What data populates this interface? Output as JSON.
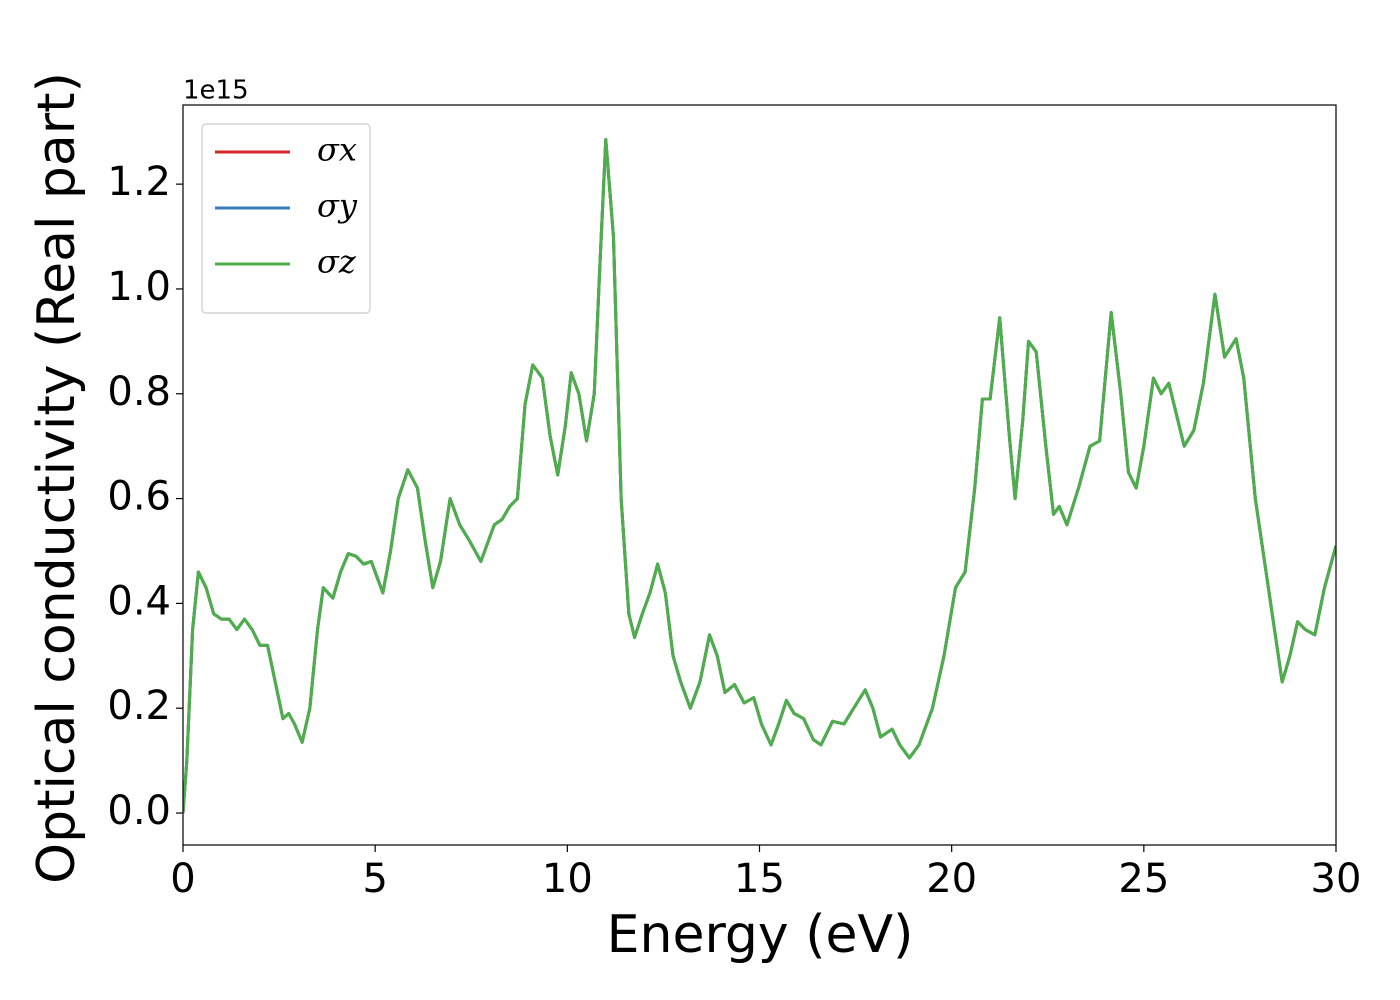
{
  "chart_data": {
    "type": "line",
    "xlabel": "Energy (eV)",
    "ylabel": "Optical conductivity (Real part)",
    "y_offset_label": "1e15",
    "xlim": [
      0,
      30
    ],
    "xticks": [
      0,
      5,
      10,
      15,
      20,
      25,
      30
    ],
    "ylim": [
      -0.061,
      1.351
    ],
    "yticks": [
      {
        "value": 0,
        "label": "0.0"
      },
      {
        "value": 0.2,
        "label": "0.2"
      },
      {
        "value": 0.4,
        "label": "0.4"
      },
      {
        "value": 0.6,
        "label": "0.6"
      },
      {
        "value": 0.8,
        "label": "0.8"
      },
      {
        "value": 1.0,
        "label": "1.0"
      },
      {
        "value": 1.2,
        "label": "1.2"
      }
    ],
    "grid": false,
    "legend": "upper left",
    "x": [
      0,
      0.1,
      0.25,
      0.4,
      0.6,
      0.8,
      1.0,
      1.2,
      1.4,
      1.6,
      1.8,
      2.0,
      2.2,
      2.4,
      2.6,
      2.75,
      2.9,
      3.1,
      3.3,
      3.5,
      3.65,
      3.9,
      4.1,
      4.3,
      4.5,
      4.7,
      4.9,
      5.05,
      5.2,
      5.4,
      5.6,
      5.85,
      6.1,
      6.3,
      6.5,
      6.7,
      6.95,
      7.2,
      7.45,
      7.75,
      7.95,
      8.1,
      8.3,
      8.5,
      8.7,
      8.9,
      9.1,
      9.35,
      9.55,
      9.75,
      9.95,
      10.1,
      10.3,
      10.5,
      10.7,
      10.85,
      11.0,
      11.2,
      11.4,
      11.6,
      11.75,
      11.95,
      12.15,
      12.35,
      12.55,
      12.75,
      12.95,
      13.2,
      13.45,
      13.7,
      13.9,
      14.1,
      14.35,
      14.6,
      14.85,
      15.05,
      15.3,
      15.5,
      15.7,
      15.9,
      16.15,
      16.4,
      16.6,
      16.9,
      17.2,
      17.45,
      17.75,
      17.95,
      18.15,
      18.45,
      18.65,
      18.9,
      19.15,
      19.5,
      19.8,
      20.1,
      20.35,
      20.6,
      20.8,
      21.0,
      21.25,
      21.5,
      21.65,
      21.85,
      22.0,
      22.2,
      22.45,
      22.65,
      22.8,
      23.0,
      23.3,
      23.6,
      23.85,
      24.15,
      24.4,
      24.6,
      24.8,
      25.0,
      25.25,
      25.45,
      25.65,
      25.85,
      26.05,
      26.3,
      26.55,
      26.85,
      27.1,
      27.4,
      27.6,
      27.9,
      28.2,
      28.4,
      28.6,
      28.8,
      29.0,
      29.2,
      29.45,
      29.7,
      30.0
    ],
    "series": [
      {
        "name": "σx",
        "color": "#d62728",
        "values": [
          0,
          0.1,
          0.35,
          0.46,
          0.43,
          0.38,
          0.37,
          0.37,
          0.35,
          0.37,
          0.35,
          0.32,
          0.32,
          0.25,
          0.18,
          0.19,
          0.17,
          0.135,
          0.2,
          0.35,
          0.43,
          0.41,
          0.46,
          0.495,
          0.49,
          0.475,
          0.48,
          0.45,
          0.42,
          0.5,
          0.6,
          0.655,
          0.62,
          0.52,
          0.43,
          0.48,
          0.6,
          0.55,
          0.52,
          0.48,
          0.52,
          0.55,
          0.56,
          0.585,
          0.6,
          0.78,
          0.855,
          0.83,
          0.72,
          0.645,
          0.74,
          0.84,
          0.8,
          0.71,
          0.8,
          1.05,
          1.285,
          1.1,
          0.6,
          0.38,
          0.335,
          0.38,
          0.42,
          0.475,
          0.42,
          0.3,
          0.25,
          0.2,
          0.25,
          0.34,
          0.3,
          0.23,
          0.245,
          0.21,
          0.22,
          0.17,
          0.13,
          0.17,
          0.215,
          0.19,
          0.18,
          0.14,
          0.13,
          0.175,
          0.17,
          0.2,
          0.235,
          0.2,
          0.145,
          0.16,
          0.13,
          0.105,
          0.13,
          0.2,
          0.3,
          0.43,
          0.46,
          0.62,
          0.79,
          0.79,
          0.945,
          0.72,
          0.6,
          0.75,
          0.9,
          0.88,
          0.7,
          0.57,
          0.585,
          0.55,
          0.62,
          0.7,
          0.71,
          0.955,
          0.8,
          0.65,
          0.62,
          0.7,
          0.83,
          0.8,
          0.82,
          0.76,
          0.7,
          0.73,
          0.82,
          0.99,
          0.87,
          0.905,
          0.83,
          0.6,
          0.45,
          0.35,
          0.25,
          0.3,
          0.365,
          0.35,
          0.34,
          0.43,
          0.51
        ]
      },
      {
        "name": "σy",
        "color": "#3a7ebf",
        "values": [
          0,
          0.1,
          0.35,
          0.46,
          0.43,
          0.38,
          0.37,
          0.37,
          0.35,
          0.37,
          0.35,
          0.32,
          0.32,
          0.25,
          0.18,
          0.19,
          0.17,
          0.135,
          0.2,
          0.35,
          0.43,
          0.41,
          0.46,
          0.495,
          0.49,
          0.475,
          0.48,
          0.45,
          0.42,
          0.5,
          0.6,
          0.655,
          0.62,
          0.52,
          0.43,
          0.48,
          0.6,
          0.55,
          0.52,
          0.48,
          0.52,
          0.55,
          0.56,
          0.585,
          0.6,
          0.78,
          0.855,
          0.83,
          0.72,
          0.645,
          0.74,
          0.84,
          0.8,
          0.71,
          0.8,
          1.05,
          1.285,
          1.1,
          0.6,
          0.38,
          0.335,
          0.38,
          0.42,
          0.475,
          0.42,
          0.3,
          0.25,
          0.2,
          0.25,
          0.34,
          0.3,
          0.23,
          0.245,
          0.21,
          0.22,
          0.17,
          0.13,
          0.17,
          0.215,
          0.19,
          0.18,
          0.14,
          0.13,
          0.175,
          0.17,
          0.2,
          0.235,
          0.2,
          0.145,
          0.16,
          0.13,
          0.105,
          0.13,
          0.2,
          0.3,
          0.43,
          0.46,
          0.62,
          0.79,
          0.79,
          0.945,
          0.72,
          0.6,
          0.75,
          0.9,
          0.88,
          0.7,
          0.57,
          0.585,
          0.55,
          0.62,
          0.7,
          0.71,
          0.955,
          0.8,
          0.65,
          0.62,
          0.7,
          0.83,
          0.8,
          0.82,
          0.76,
          0.7,
          0.73,
          0.82,
          0.99,
          0.87,
          0.905,
          0.83,
          0.6,
          0.45,
          0.35,
          0.25,
          0.3,
          0.365,
          0.35,
          0.34,
          0.43,
          0.51
        ]
      },
      {
        "name": "σz",
        "color": "#4daf4a",
        "values": [
          0,
          0.1,
          0.35,
          0.46,
          0.43,
          0.38,
          0.37,
          0.37,
          0.35,
          0.37,
          0.35,
          0.32,
          0.32,
          0.25,
          0.18,
          0.19,
          0.17,
          0.135,
          0.2,
          0.35,
          0.43,
          0.41,
          0.46,
          0.495,
          0.49,
          0.475,
          0.48,
          0.45,
          0.42,
          0.5,
          0.6,
          0.655,
          0.62,
          0.52,
          0.43,
          0.48,
          0.6,
          0.55,
          0.52,
          0.48,
          0.52,
          0.55,
          0.56,
          0.585,
          0.6,
          0.78,
          0.855,
          0.83,
          0.72,
          0.645,
          0.74,
          0.84,
          0.8,
          0.71,
          0.8,
          1.05,
          1.285,
          1.1,
          0.6,
          0.38,
          0.335,
          0.38,
          0.42,
          0.475,
          0.42,
          0.3,
          0.25,
          0.2,
          0.25,
          0.34,
          0.3,
          0.23,
          0.245,
          0.21,
          0.22,
          0.17,
          0.13,
          0.17,
          0.215,
          0.19,
          0.18,
          0.14,
          0.13,
          0.175,
          0.17,
          0.2,
          0.235,
          0.2,
          0.145,
          0.16,
          0.13,
          0.105,
          0.13,
          0.2,
          0.3,
          0.43,
          0.46,
          0.62,
          0.79,
          0.79,
          0.945,
          0.72,
          0.6,
          0.75,
          0.9,
          0.88,
          0.7,
          0.57,
          0.585,
          0.55,
          0.62,
          0.7,
          0.71,
          0.955,
          0.8,
          0.65,
          0.62,
          0.7,
          0.83,
          0.8,
          0.82,
          0.76,
          0.7,
          0.73,
          0.82,
          0.99,
          0.87,
          0.905,
          0.83,
          0.6,
          0.45,
          0.35,
          0.25,
          0.3,
          0.365,
          0.35,
          0.34,
          0.43,
          0.51
        ]
      }
    ]
  }
}
